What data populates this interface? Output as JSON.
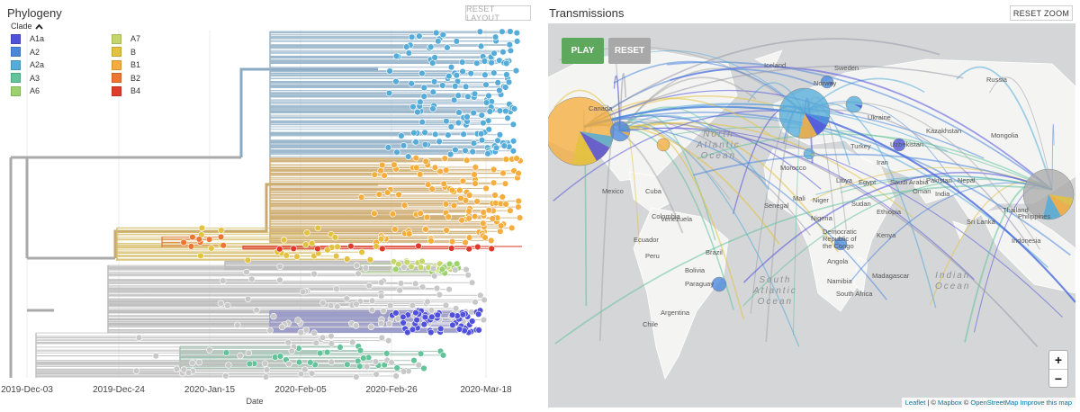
{
  "phylogeny": {
    "title": "Phylogeny",
    "reset_label": "RESET LAYOUT",
    "legend": {
      "title": "Clade",
      "items": [
        {
          "label": "A1a",
          "color": "#5050dc"
        },
        {
          "label": "A7",
          "color": "#c4d66a"
        },
        {
          "label": "A2",
          "color": "#4a87dc"
        },
        {
          "label": "B",
          "color": "#e2c23e"
        },
        {
          "label": "A2a",
          "color": "#55acd8"
        },
        {
          "label": "B1",
          "color": "#f5ad3e"
        },
        {
          "label": "A3",
          "color": "#63c39a"
        },
        {
          "label": "B2",
          "color": "#ee7432"
        },
        {
          "label": "A6",
          "color": "#9bd26d"
        },
        {
          "label": "B4",
          "color": "#e03a2c"
        }
      ]
    },
    "axis": {
      "label": "Date",
      "ticks": [
        "2019-Dec-03",
        "2019-Dec-24",
        "2020-Jan-15",
        "2020-Feb-05",
        "2020-Feb-26",
        "2020-Mar-18"
      ]
    }
  },
  "transmissions": {
    "title": "Transmissions",
    "reset_zoom_label": "RESET ZOOM",
    "play_label": "PLAY",
    "reset_label": "RESET",
    "zoom_in": "+",
    "zoom_out": "−",
    "attribution": {
      "leaflet": "Leaflet",
      "sep1": " | © ",
      "mapbox": "Mapbox",
      "sep2": " © ",
      "osm": "OpenStreetMap",
      "improve": "Improve this map"
    },
    "places": [
      "Iceland",
      "Sweden",
      "Norway",
      "Russia",
      "Canada",
      "Kazakhstan",
      "Mongolia",
      "Uzbekistan",
      "Morocco",
      "Libya",
      "Egypt",
      "Saudi Arabia",
      "Oman",
      "Pakistan",
      "Nepal",
      "Mali",
      "Niger",
      "Sudan",
      "Senegal",
      "Nigeria",
      "Ethiopia",
      "Kenya",
      "Democratic Republic of the Congo",
      "Angola",
      "Namibia",
      "South Africa",
      "Madagascar",
      "Mexico",
      "Cuba",
      "Venezuela",
      "Ecuador",
      "Colombia",
      "Peru",
      "Brazil",
      "Bolivia",
      "Paraguay",
      "Argentina",
      "Thailand",
      "Sri Lanka",
      "Indonesia",
      "Philippines",
      "Iran",
      "Ukraine",
      "Turkey",
      "India",
      "Chile"
    ],
    "oceans": [
      "North\nAtlantic\nOcean",
      "South\nAtlantic\nOcean",
      "Indian\nOcean"
    ]
  }
}
